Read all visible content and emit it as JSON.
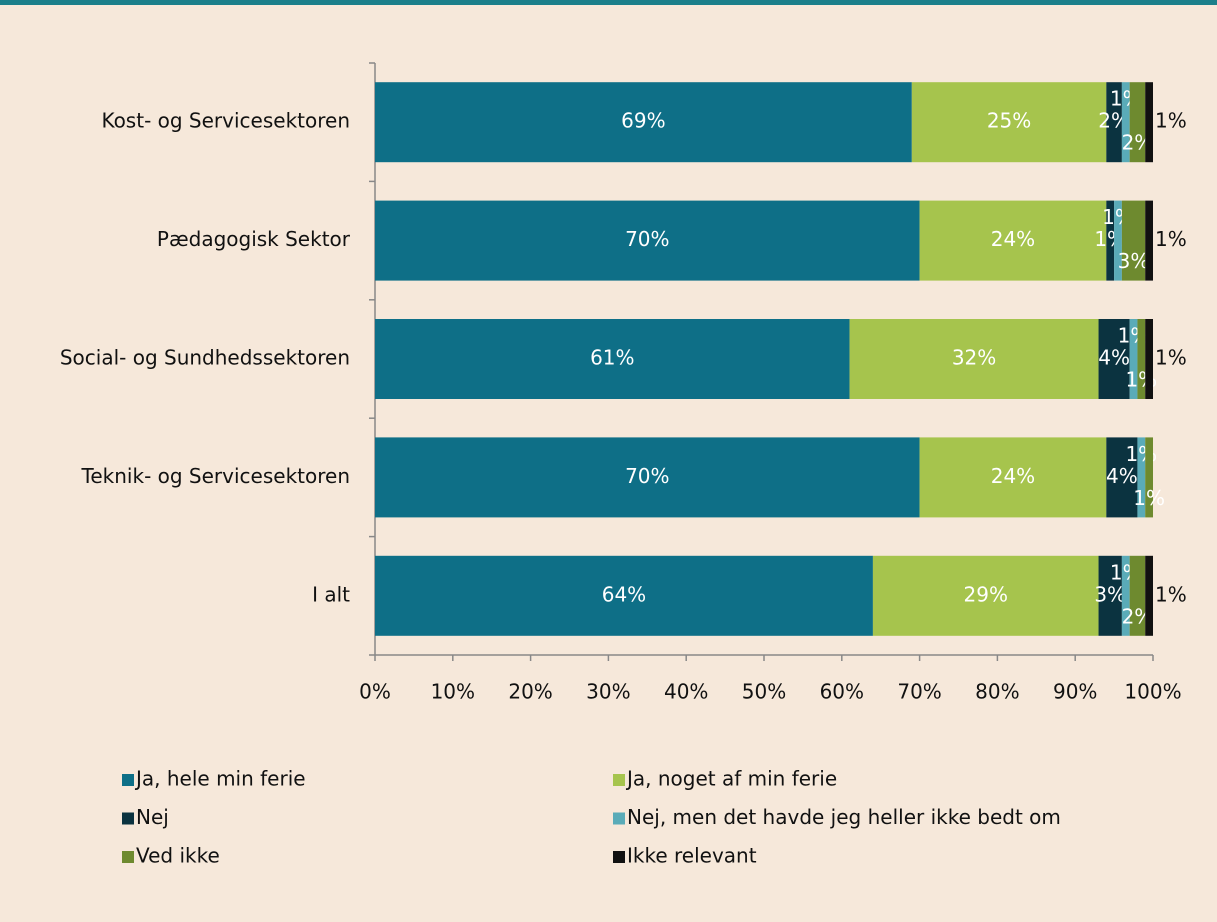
{
  "chart_data": {
    "type": "stacked_barh",
    "categories": [
      "Kost- og Servicesektoren",
      "Pædagogisk Sektor",
      "Social- og Sundhedssektoren",
      "Teknik- og Servicesektoren",
      "I alt"
    ],
    "series": [
      {
        "name": "Ja, hele min ferie",
        "color": "#0e6f87",
        "values": [
          69,
          70,
          61,
          70,
          64
        ],
        "value_labels": [
          "69%",
          "70%",
          "61%",
          "70%",
          "64%"
        ]
      },
      {
        "name": "Ja, noget af min ferie",
        "color": "#a6c44d",
        "values": [
          25,
          24,
          32,
          24,
          29
        ],
        "value_labels": [
          "25%",
          "24%",
          "32%",
          "24%",
          "29%"
        ]
      },
      {
        "name": "Nej",
        "color": "#0b3340",
        "values": [
          2,
          1,
          4,
          4,
          3
        ],
        "value_labels": [
          "2%",
          "1%",
          "4%",
          "4%",
          "3%"
        ]
      },
      {
        "name": "Nej, men det havde jeg heller ikke bedt om",
        "color": "#5aabb8",
        "values": [
          1,
          1,
          1,
          1,
          1
        ],
        "value_labels": [
          "1%",
          "1%",
          "1%",
          "1%",
          "1%"
        ]
      },
      {
        "name": "Ved ikke",
        "color": "#6e8a2f",
        "values": [
          2,
          3,
          1,
          1,
          2
        ],
        "value_labels": [
          "2%",
          "3%",
          "1%",
          "1%",
          "2%"
        ]
      },
      {
        "name": "Ikke relevant",
        "color": "#111111",
        "values": [
          1,
          1,
          1,
          null,
          1
        ],
        "value_labels": [
          "1%",
          "1%",
          "1%",
          null,
          "1%"
        ]
      }
    ],
    "xlim": [
      0,
      100
    ],
    "xticks": [
      {
        "value": 0,
        "label": "0%"
      },
      {
        "value": 10,
        "label": "10%"
      },
      {
        "value": 20,
        "label": "20%"
      },
      {
        "value": 30,
        "label": "30%"
      },
      {
        "value": 40,
        "label": "40%"
      },
      {
        "value": 50,
        "label": "50%"
      },
      {
        "value": 60,
        "label": "60%"
      },
      {
        "value": 70,
        "label": "70%"
      },
      {
        "value": 80,
        "label": "80%"
      },
      {
        "value": 90,
        "label": "90%"
      },
      {
        "value": 100,
        "label": "100%"
      }
    ],
    "legend": "bottom"
  }
}
